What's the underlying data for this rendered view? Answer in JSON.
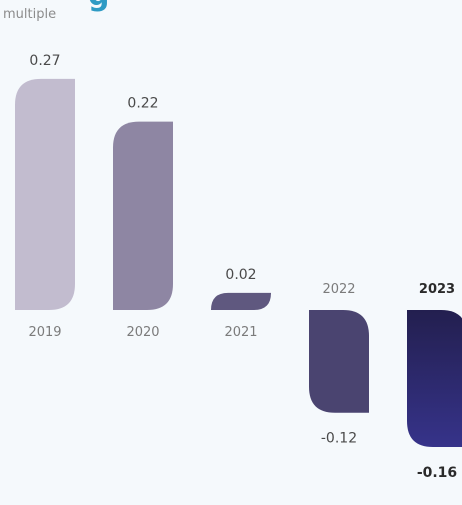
{
  "title": "g",
  "unit": "multiple",
  "colors": {
    "background": "#f5f9fc",
    "title": "#2e9bc4"
  },
  "chart_data": {
    "type": "bar",
    "categories": [
      "2019",
      "2020",
      "2021",
      "2022",
      "2023"
    ],
    "values": [
      0.27,
      0.22,
      0.02,
      -0.12,
      -0.16
    ],
    "value_labels": [
      "0.27",
      "0.22",
      "0.02",
      "-0.12",
      "-0.16"
    ],
    "highlight": "2023",
    "bar_colors": [
      "#c2bccf",
      "#8e86a3",
      "#5f587f",
      "#4a4470",
      "#2e2a6c"
    ],
    "ylim": [
      -0.16,
      0.27
    ],
    "grid": false,
    "legend": "none"
  }
}
